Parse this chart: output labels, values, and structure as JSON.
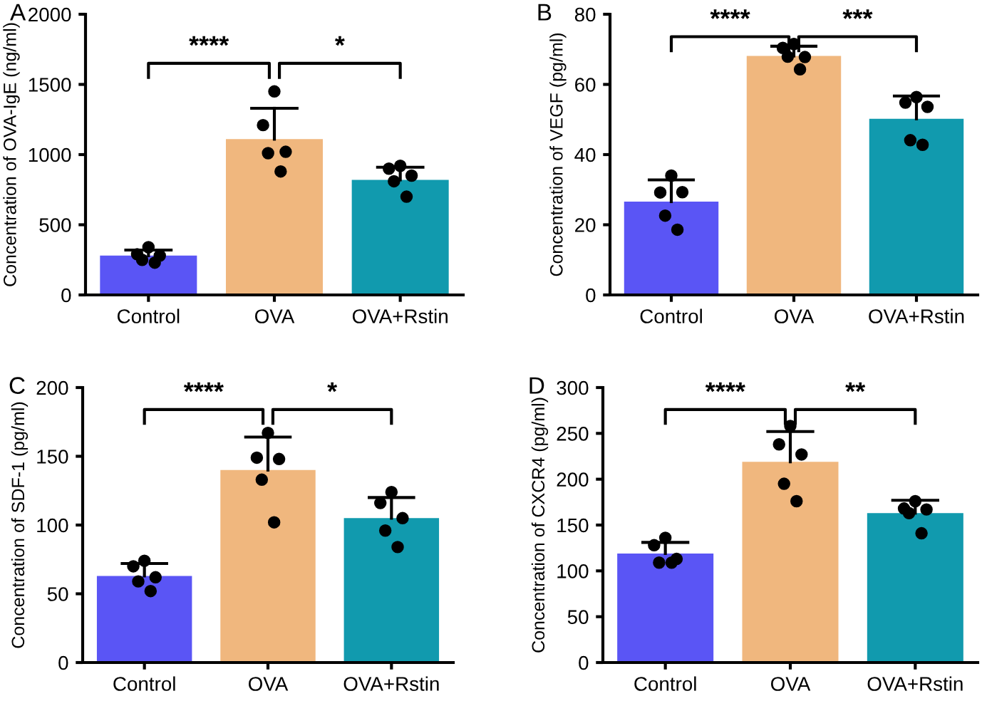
{
  "chart_data": [
    {
      "type": "bar",
      "title": "A",
      "ylabel": "Concentration of OVA-IgE (ng/ml)",
      "categories": [
        "Control",
        "OVA",
        "OVA+Rstin"
      ],
      "ylim": [
        0,
        2000
      ],
      "yticks": [
        0,
        500,
        1000,
        1500,
        2000
      ],
      "annotations": [
        "****",
        "*"
      ],
      "marker": "circle",
      "series": [
        {
          "type": "bar",
          "values": [
            280,
            1110,
            820
          ],
          "colors": [
            "#5a55f5",
            "#f0b77e",
            "#119aae"
          ],
          "errors": [
            [
              280,
              320
            ],
            [
              1110,
              1330
            ],
            [
              820,
              910
            ]
          ]
        },
        {
          "type": "scatter",
          "color": "#000000",
          "x": [
            "Control",
            "Control",
            "Control",
            "Control",
            "Control",
            "OVA",
            "OVA",
            "OVA",
            "OVA",
            "OVA",
            "OVA+Rstin",
            "OVA+Rstin",
            "OVA+Rstin",
            "OVA+Rstin",
            "OVA+Rstin"
          ],
          "values": [
            340,
            290,
            280,
            250,
            230,
            1450,
            1210,
            1020,
            1010,
            880,
            920,
            900,
            850,
            810,
            700
          ]
        }
      ]
    },
    {
      "type": "bar",
      "title": "B",
      "ylabel": "Concentration of VEGF (pg/ml)",
      "categories": [
        "Control",
        "OVA",
        "OVA+Rstin"
      ],
      "ylim": [
        0,
        80
      ],
      "yticks": [
        0,
        20,
        40,
        60,
        80
      ],
      "annotations": [
        "****",
        "***"
      ],
      "marker": "circle",
      "series": [
        {
          "type": "bar",
          "values": [
            26.6,
            68.1,
            50.2
          ],
          "colors": [
            "#5a55f5",
            "#f0b77e",
            "#119aae"
          ],
          "errors": [
            [
              26.6,
              32.8
            ],
            [
              68.1,
              70.9
            ],
            [
              50.2,
              56.7
            ]
          ]
        },
        {
          "type": "scatter",
          "color": "#000000",
          "x": [
            "Control",
            "Control",
            "Control",
            "Control",
            "Control",
            "OVA",
            "OVA",
            "OVA",
            "OVA",
            "OVA",
            "OVA+Rstin",
            "OVA+Rstin",
            "OVA+Rstin",
            "OVA+Rstin",
            "OVA+Rstin"
          ],
          "values": [
            34.0,
            29.2,
            29.3,
            22.6,
            18.6,
            71.5,
            70.4,
            67.8,
            67.9,
            64.3,
            56.4,
            54.8,
            53.6,
            44.1,
            42.8
          ]
        }
      ]
    },
    {
      "type": "bar",
      "title": "C",
      "ylabel": "Concentration of SDF-1 (pg/ml)",
      "categories": [
        "Control",
        "OVA",
        "OVA+Rstin"
      ],
      "ylim": [
        0,
        200
      ],
      "yticks": [
        0,
        50,
        100,
        150,
        200
      ],
      "annotations": [
        "****",
        "*"
      ],
      "marker": "circle",
      "series": [
        {
          "type": "bar",
          "values": [
            63,
            140,
            105
          ],
          "colors": [
            "#5a55f5",
            "#f0b77e",
            "#119aae"
          ],
          "errors": [
            [
              63,
              72
            ],
            [
              140,
              164
            ],
            [
              105,
              120
            ]
          ]
        },
        {
          "type": "scatter",
          "color": "#000000",
          "x": [
            "Control",
            "Control",
            "Control",
            "Control",
            "Control",
            "OVA",
            "OVA",
            "OVA",
            "OVA",
            "OVA",
            "OVA+Rstin",
            "OVA+Rstin",
            "OVA+Rstin",
            "OVA+Rstin",
            "OVA+Rstin"
          ],
          "values": [
            74,
            70,
            62,
            59,
            52,
            167,
            149,
            148,
            133,
            102,
            124,
            116,
            105,
            96,
            84
          ]
        }
      ]
    },
    {
      "type": "bar",
      "title": "D",
      "ylabel": "Concentration of CXCR4 (pg/ml)",
      "categories": [
        "Control",
        "OVA",
        "OVA+Rstin"
      ],
      "ylim": [
        0,
        300
      ],
      "yticks": [
        0,
        50,
        100,
        150,
        200,
        250,
        300
      ],
      "annotations": [
        "****",
        "**"
      ],
      "marker": "circle",
      "series": [
        {
          "type": "bar",
          "values": [
            119,
            219,
            163
          ],
          "colors": [
            "#5a55f5",
            "#f0b77e",
            "#119aae"
          ],
          "errors": [
            [
              119,
              131
            ],
            [
              219,
              252
            ],
            [
              163,
              177
            ]
          ]
        },
        {
          "type": "scatter",
          "color": "#000000",
          "x": [
            "Control",
            "Control",
            "Control",
            "Control",
            "Control",
            "OVA",
            "OVA",
            "OVA",
            "OVA",
            "OVA",
            "OVA+Rstin",
            "OVA+Rstin",
            "OVA+Rstin",
            "OVA+Rstin",
            "OVA+Rstin"
          ],
          "values": [
            136,
            128,
            113,
            109,
            109,
            258,
            238,
            227,
            195,
            176,
            176,
            168,
            167,
            163,
            141
          ]
        }
      ]
    }
  ]
}
